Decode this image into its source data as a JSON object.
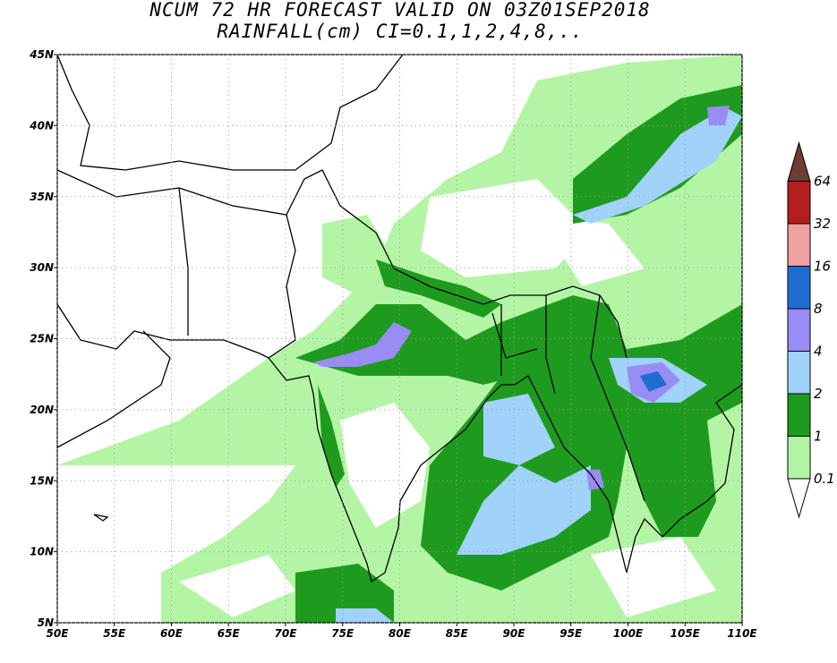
{
  "map": {
    "title": [
      "NCUM 72 HR FORECAST VALID ON 03Z01SEP2018",
      "RAINFALL(cm) CI=0.1,1,2,4,8,.."
    ],
    "lonlim": [
      50,
      110
    ],
    "latlim": [
      5,
      45
    ],
    "lon_ticks": [
      {
        "value": 50,
        "label": "50E"
      },
      {
        "value": 55,
        "label": "55E"
      },
      {
        "value": 60,
        "label": "60E"
      },
      {
        "value": 65,
        "label": "65E"
      },
      {
        "value": 70,
        "label": "70E"
      },
      {
        "value": 75,
        "label": "75E"
      },
      {
        "value": 80,
        "label": "80E"
      },
      {
        "value": 85,
        "label": "85E"
      },
      {
        "value": 90,
        "label": "90E"
      },
      {
        "value": 95,
        "label": "95E"
      },
      {
        "value": 100,
        "label": "100E"
      },
      {
        "value": 105,
        "label": "105E"
      },
      {
        "value": 110,
        "label": "110E"
      }
    ],
    "lat_ticks": [
      {
        "value": 5,
        "label": "5N"
      },
      {
        "value": 10,
        "label": "10N"
      },
      {
        "value": 15,
        "label": "15N"
      },
      {
        "value": 20,
        "label": "20N"
      },
      {
        "value": 25,
        "label": "25N"
      },
      {
        "value": 30,
        "label": "30N"
      },
      {
        "value": 35,
        "label": "35N"
      },
      {
        "value": 40,
        "label": "40N"
      },
      {
        "value": 45,
        "label": "45N"
      }
    ],
    "colorbar": {
      "levels": [
        0.1,
        1,
        2,
        4,
        8,
        16,
        32,
        64
      ],
      "colors": [
        "#ffffff",
        "#b4f5a5",
        "#1e9b1e",
        "#a0d2fa",
        "#9a8cf5",
        "#1e6ed2",
        "#f0a0a0",
        "#b41e1e",
        "#6e3c32"
      ]
    }
  }
}
